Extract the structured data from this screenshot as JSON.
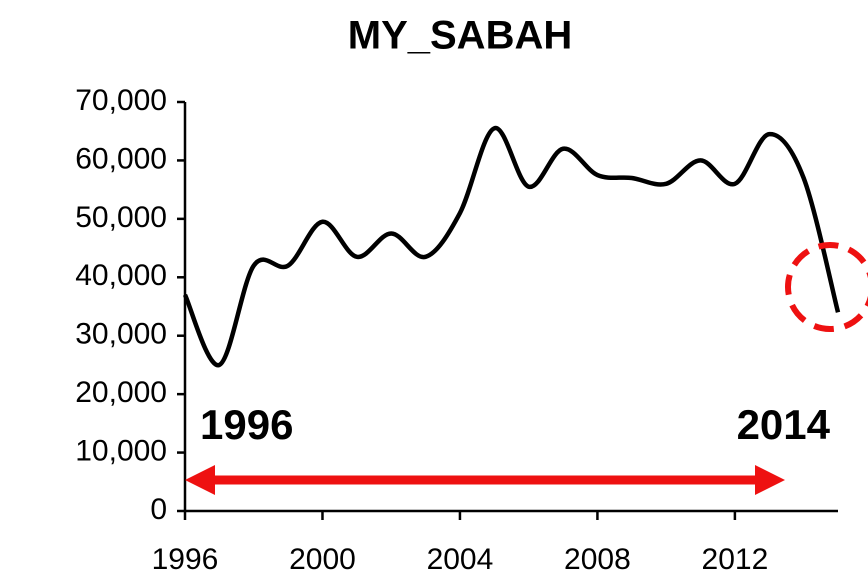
{
  "chart_data": {
    "type": "line",
    "title": "MY_SABAH",
    "x": [
      1996,
      1997,
      1998,
      1999,
      2000,
      2001,
      2002,
      2003,
      2004,
      2005,
      2006,
      2007,
      2008,
      2009,
      2010,
      2011,
      2012,
      2013,
      2014,
      2015
    ],
    "series": [
      {
        "name": "MY_SABAH",
        "color": "#000000",
        "values": [
          37000,
          25000,
          42000,
          42000,
          49500,
          43500,
          47500,
          43500,
          51000,
          65500,
          55500,
          62000,
          57500,
          57000,
          56000,
          60000,
          56000,
          64500,
          57000,
          34000
        ]
      }
    ],
    "xlim": [
      1996,
      2015
    ],
    "xticks": [
      1996,
      2000,
      2004,
      2008,
      2012
    ],
    "ylim": [
      0,
      70000
    ],
    "yticks": [
      {
        "value": 0,
        "label": "0"
      },
      {
        "value": 10000,
        "label": "10,000"
      },
      {
        "value": 20000,
        "label": "20,000"
      },
      {
        "value": 30000,
        "label": "30,000"
      },
      {
        "value": 40000,
        "label": "40,000"
      },
      {
        "value": 50000,
        "label": "50,000"
      },
      {
        "value": 60000,
        "label": "60,000"
      },
      {
        "value": 70000,
        "label": "70,000"
      }
    ],
    "grid": false,
    "annotations": [
      "1996",
      "2014"
    ],
    "annotation_color": "#ee1111"
  }
}
